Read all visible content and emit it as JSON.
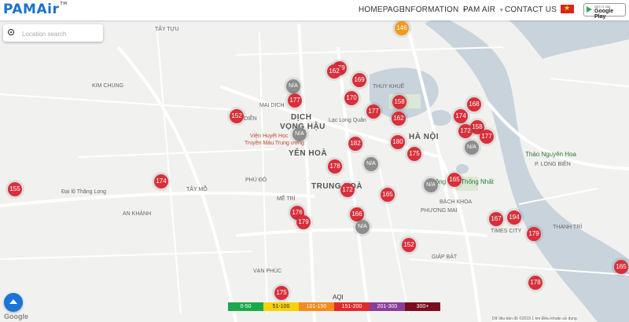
{
  "app": {
    "logo": "PAMAir",
    "logo_tm": "TM"
  },
  "nav": {
    "items": [
      {
        "label": "HOMEPAGE",
        "dropdown": false
      },
      {
        "label": "INFORMATION",
        "dropdown": true
      },
      {
        "label": "PAM AIR",
        "dropdown": true
      },
      {
        "label": "CONTACT US",
        "dropdown": true
      }
    ]
  },
  "store_badge": {
    "small": "GET IT ON",
    "big": "Google Play"
  },
  "search": {
    "placeholder": "Location search"
  },
  "legend": {
    "title": "AQI",
    "ranges": [
      {
        "label": "0-50",
        "color": "#1aa84a"
      },
      {
        "label": "51-100",
        "color": "#f5d20a"
      },
      {
        "label": "101-150",
        "color": "#f28c1f"
      },
      {
        "label": "151-200",
        "color": "#e02b2b"
      },
      {
        "label": "201-300",
        "color": "#8a3d9b"
      },
      {
        "label": "300+",
        "color": "#7a0e1e"
      }
    ]
  },
  "markers": [
    {
      "label": "146",
      "cat": "orange"
    },
    {
      "label": "179",
      "cat": "red"
    },
    {
      "label": "162",
      "cat": "red"
    },
    {
      "label": "169",
      "cat": "red"
    },
    {
      "label": "N/A",
      "cat": "na"
    },
    {
      "label": "177",
      "cat": "red"
    },
    {
      "label": "170",
      "cat": "red"
    },
    {
      "label": "158",
      "cat": "red"
    },
    {
      "label": "168",
      "cat": "red"
    },
    {
      "label": "152",
      "cat": "red"
    },
    {
      "label": "177",
      "cat": "red"
    },
    {
      "label": "162",
      "cat": "red"
    },
    {
      "label": "174",
      "cat": "red"
    },
    {
      "label": "158",
      "cat": "red"
    },
    {
      "label": "172",
      "cat": "red"
    },
    {
      "label": "177",
      "cat": "red"
    },
    {
      "label": "N/A",
      "cat": "na"
    },
    {
      "label": "N/A",
      "cat": "na"
    },
    {
      "label": "182",
      "cat": "red"
    },
    {
      "label": "180",
      "cat": "red"
    },
    {
      "label": "175",
      "cat": "red"
    },
    {
      "label": "N/A",
      "cat": "na"
    },
    {
      "label": "178",
      "cat": "red"
    },
    {
      "label": "165",
      "cat": "red"
    },
    {
      "label": "N/A",
      "cat": "na"
    },
    {
      "label": "155",
      "cat": "red"
    },
    {
      "label": "174",
      "cat": "red"
    },
    {
      "label": "172",
      "cat": "red"
    },
    {
      "label": "165",
      "cat": "red"
    },
    {
      "label": "176",
      "cat": "red"
    },
    {
      "label": "179",
      "cat": "red"
    },
    {
      "label": "166",
      "cat": "red"
    },
    {
      "label": "N/A",
      "cat": "na"
    },
    {
      "label": "167",
      "cat": "red"
    },
    {
      "label": "194",
      "cat": "red"
    },
    {
      "label": "179",
      "cat": "red"
    },
    {
      "label": "152",
      "cat": "red"
    },
    {
      "label": "175",
      "cat": "red"
    },
    {
      "label": "178",
      "cat": "red"
    },
    {
      "label": "165",
      "cat": "red"
    }
  ],
  "marker_colors": {
    "red": "#d7303b",
    "orange": "#f29a1c",
    "na": "#8d8d8d"
  },
  "map_labels": [
    {
      "text": "TÂY TỰU",
      "type": "area"
    },
    {
      "text": "KIM CHUNG",
      "type": "area"
    },
    {
      "text": "DỊCH",
      "type": "big"
    },
    {
      "text": "VỌNG HẬU",
      "type": "big"
    },
    {
      "text": "YÊN HOÀ",
      "type": "big"
    },
    {
      "text": "TRUNG HOÀ",
      "type": "big"
    },
    {
      "text": "HÀ NỘI",
      "type": "big"
    },
    {
      "text": "MAI DỊCH",
      "type": "area"
    },
    {
      "text": "DIỄN",
      "type": "area"
    },
    {
      "text": "THUY KHUÊ",
      "type": "area"
    },
    {
      "text": "TÂY MỖ",
      "type": "area"
    },
    {
      "text": "AN KHÁNH",
      "type": "area"
    },
    {
      "text": "MỄ TRÌ",
      "type": "area"
    },
    {
      "text": "PHÚ ĐÔ",
      "type": "area"
    },
    {
      "text": "PHƯƠNG MAI",
      "type": "area"
    },
    {
      "text": "BÁCH KHOA",
      "type": "area"
    },
    {
      "text": "THANH TRÌ",
      "type": "area"
    },
    {
      "text": "VẠN PHÚC",
      "type": "area"
    },
    {
      "text": "GIÁP BÁT",
      "type": "area"
    },
    {
      "text": "P. LONG BIÊN",
      "type": "area"
    },
    {
      "text": "Thảo Nguyên Hoa",
      "type": "green"
    },
    {
      "text": "Viện Huyết Học",
      "type": "poi"
    },
    {
      "text": "Truyền Máu Trung ương",
      "type": "poi"
    },
    {
      "text": "Đại lộ Thăng Long",
      "type": "road"
    },
    {
      "text": "Lạc Long Quân",
      "type": "road"
    },
    {
      "text": "Công viên Thống Nhất",
      "type": "green"
    },
    {
      "text": "TIMES CITY",
      "type": "area"
    }
  ],
  "attribution": "Dữ liệu bản đồ ©2019   1 km   Điều khoản sử dụng",
  "google": "Google"
}
